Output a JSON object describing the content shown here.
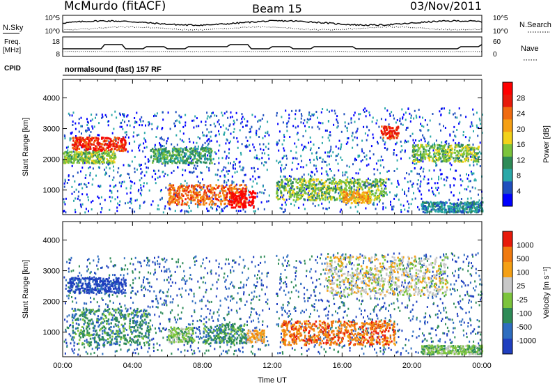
{
  "header": {
    "site": "McMurdo (fitACF)",
    "beam": "Beam 15",
    "date": "03/Nov/2011"
  },
  "top_panels": {
    "nsky_label": "N.Sky",
    "nsky_ticks": [
      "10^5",
      "10^0"
    ],
    "nsearch_label": "N.Search",
    "nsearch_ticks": [
      "10^5",
      "10^0"
    ],
    "freq_label_1": "Freq.",
    "freq_label_2": "[MHz]",
    "freq_ticks": [
      "18",
      "8"
    ],
    "nave_label": "Nave",
    "nave_ticks": [
      "60",
      "0"
    ],
    "cpid_label": "CPID",
    "cpid_text": "normalsound (fast) 157 RF"
  },
  "chart_data": [
    {
      "type": "heatmap",
      "title": "",
      "ylabel": "Slant Range [km]",
      "xlabel": "",
      "yticks": [
        "1000",
        "2000",
        "3000",
        "4000"
      ],
      "ylim": [
        200,
        4600
      ],
      "colorbar": {
        "label": "Power [dB]",
        "ticks": [
          "4",
          "8",
          "12",
          "16",
          "20",
          "24",
          "28"
        ],
        "colors": [
          "#0000ff",
          "#1f4fbe",
          "#2aa8a8",
          "#2e8b57",
          "#7cc43c",
          "#f2d21a",
          "#f5a015",
          "#f06b10",
          "#e81a0a",
          "#ff0000"
        ]
      },
      "bands": [
        {
          "t0": 0.5,
          "t1": 3.6,
          "r0": 2300,
          "r1": 2750,
          "level": 8
        },
        {
          "t0": 0.0,
          "t1": 3.0,
          "r0": 1900,
          "r1": 2300,
          "level": 4
        },
        {
          "t0": 5.0,
          "t1": 8.5,
          "r0": 1900,
          "r1": 2400,
          "level": 3
        },
        {
          "t0": 6.0,
          "t1": 10.5,
          "r0": 550,
          "r1": 1200,
          "level": 7
        },
        {
          "t0": 9.5,
          "t1": 11.0,
          "r0": 450,
          "r1": 1000,
          "level": 9
        },
        {
          "t0": 12.2,
          "t1": 18.5,
          "r0": 700,
          "r1": 1400,
          "level": 4
        },
        {
          "t0": 16.0,
          "t1": 17.6,
          "r0": 600,
          "r1": 1000,
          "level": 6
        },
        {
          "t0": 18.2,
          "t1": 19.2,
          "r0": 2700,
          "r1": 3100,
          "level": 8
        },
        {
          "t0": 20.0,
          "t1": 23.8,
          "r0": 1950,
          "r1": 2500,
          "level": 4
        },
        {
          "t0": 20.5,
          "t1": 24.0,
          "r0": 300,
          "r1": 650,
          "level": 2
        }
      ],
      "speckle_regions": [
        {
          "t0": 0.0,
          "t1": 11.8,
          "r0": 300,
          "r1": 3600
        },
        {
          "t0": 12.2,
          "t1": 24.0,
          "r0": 300,
          "r1": 3700
        }
      ]
    },
    {
      "type": "heatmap",
      "title": "",
      "ylabel": "Slant Range [km]",
      "xlabel": "Time UT",
      "xticks": [
        "00:00",
        "04:00",
        "08:00",
        "12:00",
        "16:00",
        "20:00",
        "00:00"
      ],
      "yticks": [
        "1000",
        "2000",
        "3000",
        "4000"
      ],
      "ylim": [
        200,
        4600
      ],
      "colorbar": {
        "label": "Velocity [m s⁻¹]",
        "ticks": [
          "1000",
          "500",
          "100",
          "25",
          "-25",
          "-100",
          "-500",
          "-1000"
        ],
        "colors": [
          "#1f3fbf",
          "#2e6dbf",
          "#2e8b57",
          "#7cc43c",
          "#c8c8c8",
          "#f5a015",
          "#f07a10",
          "#e81a0a"
        ]
      },
      "bands": [
        {
          "t0": 0.3,
          "t1": 3.6,
          "r0": 2300,
          "r1": 2800,
          "level": 0
        },
        {
          "t0": 0.5,
          "t1": 5.0,
          "r0": 600,
          "r1": 1800,
          "level": 2
        },
        {
          "t0": 6.0,
          "t1": 7.5,
          "r0": 700,
          "r1": 1200,
          "level": 3
        },
        {
          "t0": 8.0,
          "t1": 10.5,
          "r0": 650,
          "r1": 1300,
          "level": 2
        },
        {
          "t0": 10.5,
          "t1": 11.5,
          "r0": 700,
          "r1": 1100,
          "level": 5
        },
        {
          "t0": 12.5,
          "t1": 19.0,
          "r0": 600,
          "r1": 1400,
          "level": 6
        },
        {
          "t0": 15.0,
          "t1": 22.0,
          "r0": 2200,
          "r1": 3500,
          "level": 4
        },
        {
          "t0": 20.5,
          "t1": 24.0,
          "r0": 300,
          "r1": 600,
          "level": 3
        }
      ],
      "speckle_regions": [
        {
          "t0": 0.0,
          "t1": 11.8,
          "r0": 300,
          "r1": 3500
        },
        {
          "t0": 12.2,
          "t1": 24.0,
          "r0": 300,
          "r1": 3600
        }
      ]
    }
  ]
}
